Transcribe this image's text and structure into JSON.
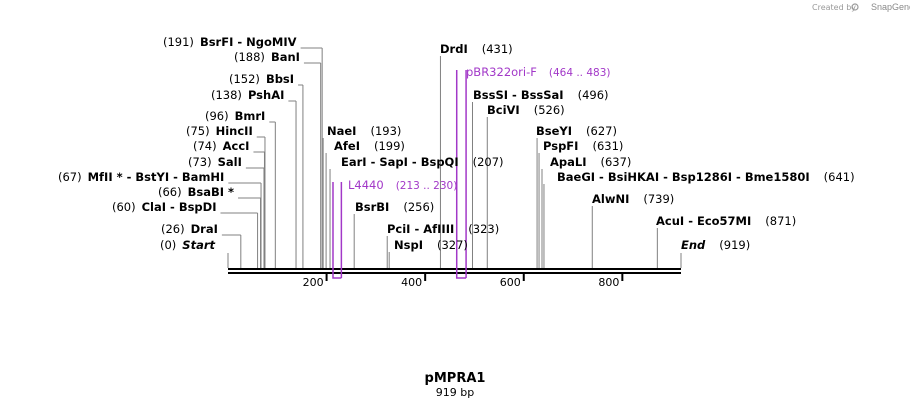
{
  "credit": "Created by",
  "brand": "SnapGene",
  "plasmid": {
    "name": "pMPRA1",
    "size_label": "919 bp",
    "length": 919
  },
  "ruler_ticks": [
    {
      "pos": 200,
      "label": "200"
    },
    {
      "pos": 400,
      "label": "400"
    },
    {
      "pos": 600,
      "label": "600"
    },
    {
      "pos": 800,
      "label": "800"
    }
  ],
  "features": [
    {
      "pos": "(191)",
      "names": [
        "BsrFI",
        "NgoMIV"
      ],
      "bp": 191
    },
    {
      "pos": "(188)",
      "names": [
        "BanI"
      ],
      "bp": 188
    },
    {
      "pos": "(152)",
      "names": [
        "BbsI"
      ],
      "bp": 152
    },
    {
      "pos": "(138)",
      "names": [
        "PshAI"
      ],
      "bp": 138
    },
    {
      "pos": "(96)",
      "names": [
        "BmrI"
      ],
      "bp": 96
    },
    {
      "pos": "(75)",
      "names": [
        "HincII"
      ],
      "bp": 75
    },
    {
      "pos": "(74)",
      "names": [
        "AccI"
      ],
      "bp": 74
    },
    {
      "pos": "(73)",
      "names": [
        "SalI"
      ],
      "bp": 73
    },
    {
      "pos": "(67)",
      "names": [
        "MfII *",
        "BstYI",
        "BamHI"
      ],
      "bp": 67
    },
    {
      "pos": "(66)",
      "names": [
        "BsaBI *"
      ],
      "bp": 66
    },
    {
      "pos": "(60)",
      "names": [
        "ClaI",
        "BspDI"
      ],
      "bp": 60
    },
    {
      "pos": "(26)",
      "names": [
        "DraI"
      ],
      "bp": 26
    },
    {
      "pos": "(0)",
      "names": [
        "Start"
      ],
      "bp": 0
    },
    {
      "pos": "(193)",
      "names": [
        "NaeI"
      ],
      "bp": 193
    },
    {
      "pos": "(199)",
      "names": [
        "AfeI"
      ],
      "bp": 199
    },
    {
      "pos": "(207)",
      "names": [
        "EarI",
        "SapI",
        "BspQI"
      ],
      "bp": 207
    },
    {
      "pos": "(256)",
      "names": [
        "BsrBI"
      ],
      "bp": 256
    },
    {
      "pos": "(323)",
      "names": [
        "PciI",
        "AfIIII"
      ],
      "bp": 323
    },
    {
      "pos": "(327)",
      "names": [
        "NspI"
      ],
      "bp": 327
    },
    {
      "pos": "(431)",
      "names": [
        "DrdI"
      ],
      "bp": 431
    },
    {
      "pos": "(496)",
      "names": [
        "BssSI",
        "BssSaI"
      ],
      "bp": 496
    },
    {
      "pos": "(526)",
      "names": [
        "BciVI"
      ],
      "bp": 526
    },
    {
      "pos": "(627)",
      "names": [
        "BseYI"
      ],
      "bp": 627
    },
    {
      "pos": "(631)",
      "names": [
        "PspFI"
      ],
      "bp": 631
    },
    {
      "pos": "(637)",
      "names": [
        "ApaLI"
      ],
      "bp": 637
    },
    {
      "pos": "(641)",
      "names": [
        "BaeGI",
        "BsiHKAI",
        "Bsp1286I",
        "Bme1580I"
      ],
      "bp": 641
    },
    {
      "pos": "(739)",
      "names": [
        "AlwNI"
      ],
      "bp": 739
    },
    {
      "pos": "(871)",
      "names": [
        "AcuI",
        "Eco57MI"
      ],
      "bp": 871
    },
    {
      "pos": "(919)",
      "names": [
        "End"
      ],
      "bp": 919
    }
  ],
  "primers": [
    {
      "name": "L4440",
      "range": "(213 .. 230)",
      "start": 213,
      "end": 230
    },
    {
      "name": "pBR322ori-F",
      "range": "(464 .. 483)",
      "start": 464,
      "end": 483
    }
  ],
  "colors": {
    "primer": "#a238c8",
    "backbone": "#000000",
    "line": "#808080"
  }
}
